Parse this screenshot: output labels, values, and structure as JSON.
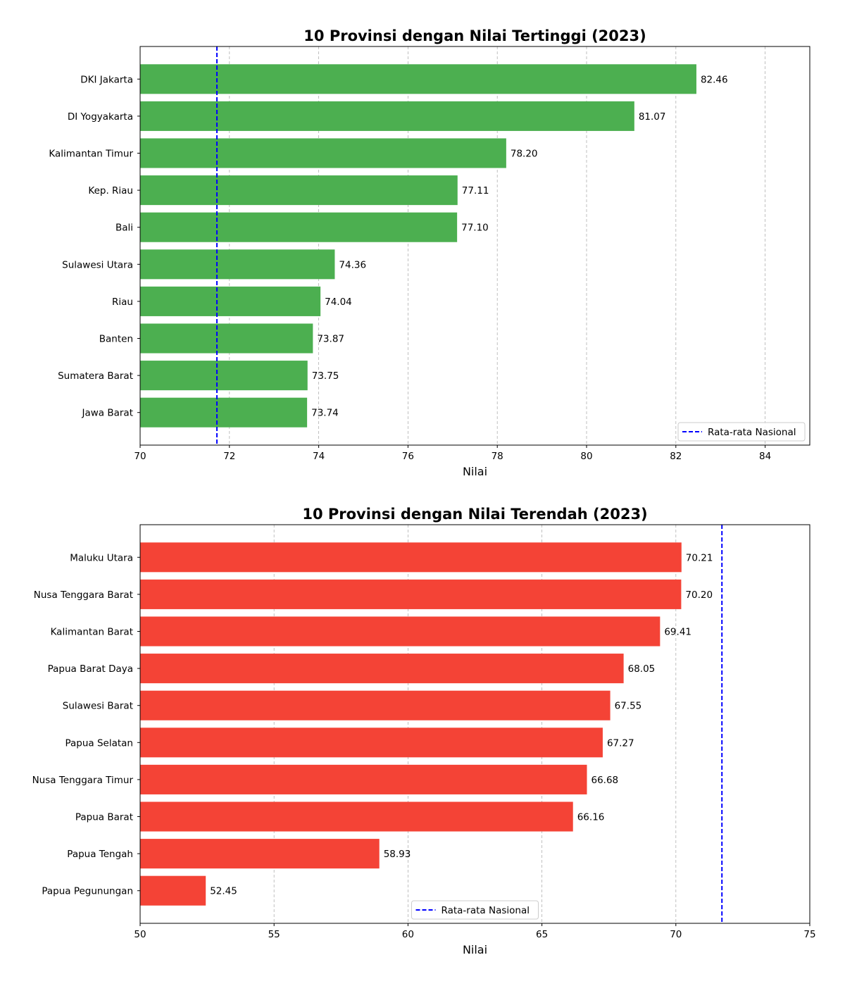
{
  "chart_data": [
    {
      "type": "bar",
      "orientation": "horizontal",
      "title": "10 Provinsi dengan Nilai Tertinggi (2023)",
      "xlabel": "Nilai",
      "ylabel": "",
      "xlim": [
        70,
        85
      ],
      "xticks": [
        70,
        72,
        74,
        76,
        78,
        80,
        82,
        84
      ],
      "grid": "x-dashed",
      "bar_color": "#4caf50",
      "reference_line": {
        "label": "Rata-rata Nasional",
        "value": 71.72,
        "color": "#0000ff",
        "style": "dashed"
      },
      "legend_position": "bottom-right",
      "categories": [
        "DKI Jakarta",
        "DI Yogyakarta",
        "Kalimantan Timur",
        "Kep. Riau",
        "Bali",
        "Sulawesi Utara",
        "Riau",
        "Banten",
        "Sumatera Barat",
        "Jawa Barat"
      ],
      "values": [
        82.46,
        81.07,
        78.2,
        77.11,
        77.1,
        74.36,
        74.04,
        73.87,
        73.75,
        73.74
      ],
      "value_labels": [
        "82.46",
        "81.07",
        "78.20",
        "77.11",
        "77.10",
        "74.36",
        "74.04",
        "73.87",
        "73.75",
        "73.74"
      ]
    },
    {
      "type": "bar",
      "orientation": "horizontal",
      "title": "10 Provinsi dengan Nilai Terendah (2023)",
      "xlabel": "Nilai",
      "ylabel": "",
      "xlim": [
        50,
        75
      ],
      "xticks": [
        50,
        55,
        60,
        65,
        70,
        75
      ],
      "grid": "x-dashed",
      "bar_color": "#f44336",
      "reference_line": {
        "label": "Rata-rata Nasional",
        "value": 71.72,
        "color": "#0000ff",
        "style": "dashed"
      },
      "legend_position": "bottom-center",
      "categories": [
        "Maluku Utara",
        "Nusa Tenggara Barat",
        "Kalimantan Barat",
        "Papua Barat Daya",
        "Sulawesi Barat",
        "Papua Selatan",
        "Nusa Tenggara Timur",
        "Papua Barat",
        "Papua Tengah",
        "Papua Pegunungan"
      ],
      "values": [
        70.21,
        70.2,
        69.41,
        68.05,
        67.55,
        67.27,
        66.68,
        66.16,
        58.93,
        52.45
      ],
      "value_labels": [
        "70.21",
        "70.20",
        "69.41",
        "68.05",
        "67.55",
        "67.27",
        "66.68",
        "66.16",
        "58.93",
        "52.45"
      ]
    }
  ]
}
